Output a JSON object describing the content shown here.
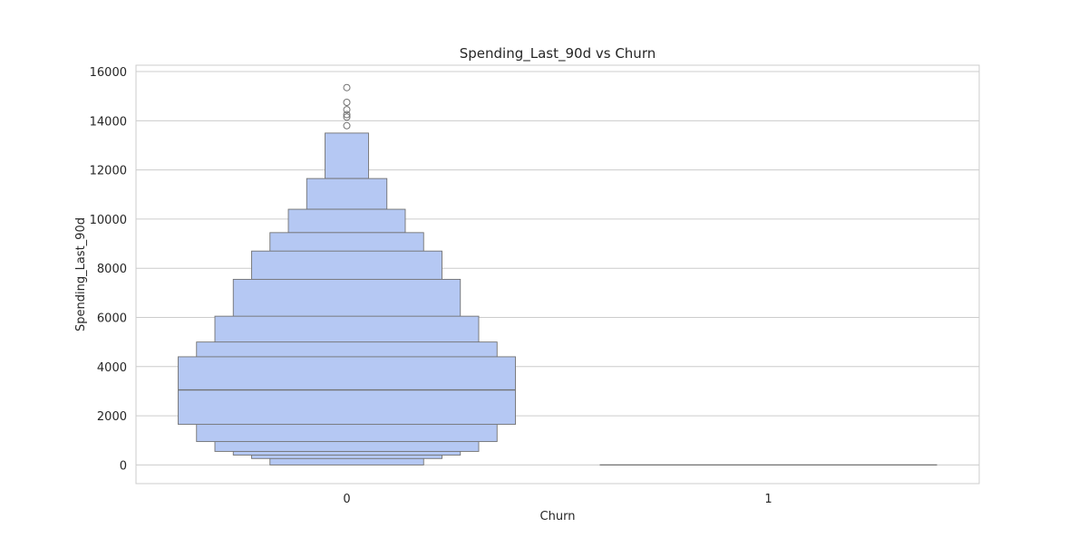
{
  "chart_data": {
    "type": "boxenplot",
    "title": "Spending_Last_90d vs Churn",
    "xlabel": "Churn",
    "ylabel": "Spending_Last_90d",
    "categories": [
      "0",
      "1"
    ],
    "ylim": [
      -760,
      16260
    ],
    "yticks": [
      0,
      2000,
      4000,
      6000,
      8000,
      10000,
      12000,
      14000,
      16000
    ],
    "grid": true,
    "colors": {
      "box_fill": "#b5c8f3",
      "box_edge": "#727272",
      "grid": "#cccccc",
      "spine": "#cccccc"
    },
    "series": [
      {
        "category": "0",
        "median": 3050,
        "boxes": [
          [
            1650,
            4400
          ],
          [
            950,
            5000
          ],
          [
            550,
            6050
          ],
          [
            400,
            7550
          ],
          [
            260,
            8700
          ],
          [
            0,
            9450
          ],
          [
            null,
            10400
          ],
          [
            null,
            11650
          ],
          [
            null,
            13500
          ]
        ],
        "outliers": [
          13800,
          14150,
          14250,
          14450,
          14750,
          15350
        ]
      },
      {
        "category": "1",
        "median": 0,
        "boxes": [],
        "outliers": []
      }
    ]
  }
}
